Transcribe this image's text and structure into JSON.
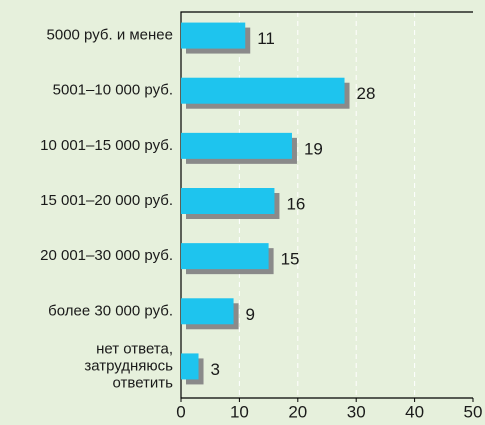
{
  "chart_data": {
    "type": "bar",
    "orientation": "horizontal",
    "categories": [
      "5000 руб. и менее",
      "5001–10 000 руб.",
      "10 001–15 000 руб.",
      "15 001–20 000 руб.",
      "20 001–30 000 руб.",
      "более 30 000 руб.",
      "нет ответа,\nзатрудняюсь\nответить"
    ],
    "values": [
      11,
      28,
      19,
      16,
      15,
      9,
      3
    ],
    "color": "#1ec4ee",
    "xlim": [
      0,
      50
    ],
    "xticks": [
      0,
      10,
      20,
      30,
      40,
      50
    ],
    "grid": true
  }
}
